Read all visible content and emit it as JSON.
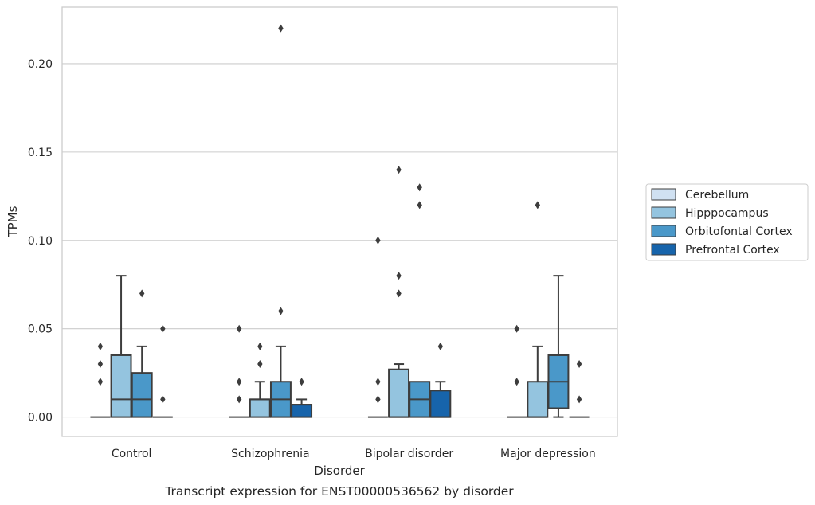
{
  "chart_data": {
    "type": "boxplot",
    "caption": "Transcript expression for ENST00000536562 by disorder",
    "xlabel": "Disorder",
    "ylabel": "TPMs",
    "ylim": [
      -0.011,
      0.232
    ],
    "yticks": [
      0.0,
      0.05,
      0.1,
      0.15,
      0.2
    ],
    "ytick_labels": [
      "0.00",
      "0.05",
      "0.10",
      "0.15",
      "0.20"
    ],
    "grid": "horizontal",
    "legend_position": "right",
    "categories": [
      "Control",
      "Schizophrenia",
      "Bipolar disorder",
      "Major depression"
    ],
    "series": [
      {
        "name": "Cerebellum",
        "color": "#d0e1f2",
        "boxes": [
          {
            "q1": 0,
            "median": 0,
            "q3": 0,
            "whislo": 0,
            "whishi": 0,
            "fliers": [
              0.02,
              0.03,
              0.04
            ]
          },
          {
            "q1": 0,
            "median": 0,
            "q3": 0,
            "whislo": 0,
            "whishi": 0,
            "fliers": [
              0.01,
              0.02,
              0.05
            ]
          },
          {
            "q1": 0,
            "median": 0,
            "q3": 0,
            "whislo": 0,
            "whishi": 0,
            "fliers": [
              0.01,
              0.02,
              0.1
            ]
          },
          {
            "q1": 0,
            "median": 0,
            "q3": 0,
            "whislo": 0,
            "whishi": 0,
            "fliers": [
              0.02,
              0.05
            ]
          }
        ]
      },
      {
        "name": "Hipppocampus",
        "color": "#94c4df",
        "boxes": [
          {
            "q1": 0,
            "median": 0.01,
            "q3": 0.035,
            "whislo": 0,
            "whishi": 0.08,
            "fliers": []
          },
          {
            "q1": 0,
            "median": 0.01,
            "q3": 0.01,
            "whislo": 0,
            "whishi": 0.02,
            "fliers": [
              0.03,
              0.04
            ]
          },
          {
            "q1": 0,
            "median": 0,
            "q3": 0.027,
            "whislo": 0,
            "whishi": 0.03,
            "fliers": [
              0.07,
              0.08,
              0.14
            ]
          },
          {
            "q1": 0,
            "median": 0,
            "q3": 0.02,
            "whislo": 0,
            "whishi": 0.04,
            "fliers": [
              0.12
            ]
          }
        ]
      },
      {
        "name": "Orbitofontal Cortex",
        "color": "#4a98c9",
        "boxes": [
          {
            "q1": 0,
            "median": 0.01,
            "q3": 0.025,
            "whislo": 0,
            "whishi": 0.04,
            "fliers": [
              0.07
            ]
          },
          {
            "q1": 0,
            "median": 0.01,
            "q3": 0.02,
            "whislo": 0,
            "whishi": 0.04,
            "fliers": [
              0.06,
              0.22
            ]
          },
          {
            "q1": 0,
            "median": 0.01,
            "q3": 0.02,
            "whislo": 0,
            "whishi": 0.02,
            "fliers": [
              0.12,
              0.13
            ]
          },
          {
            "q1": 0.005,
            "median": 0.02,
            "q3": 0.035,
            "whislo": 0,
            "whishi": 0.08,
            "fliers": []
          }
        ]
      },
      {
        "name": "Prefrontal Cortex",
        "color": "#1764ab",
        "boxes": [
          {
            "q1": 0,
            "median": 0,
            "q3": 0,
            "whislo": 0,
            "whishi": 0,
            "fliers": [
              0.01,
              0.05
            ]
          },
          {
            "q1": 0,
            "median": 0.007,
            "q3": 0.007,
            "whislo": 0,
            "whishi": 0.01,
            "fliers": [
              0.02
            ]
          },
          {
            "q1": 0,
            "median": 0,
            "q3": 0.015,
            "whislo": 0,
            "whishi": 0.02,
            "fliers": [
              0.04
            ]
          },
          {
            "q1": 0,
            "median": 0,
            "q3": 0,
            "whislo": 0,
            "whishi": 0,
            "fliers": [
              0.01,
              0.03
            ]
          }
        ]
      }
    ]
  }
}
